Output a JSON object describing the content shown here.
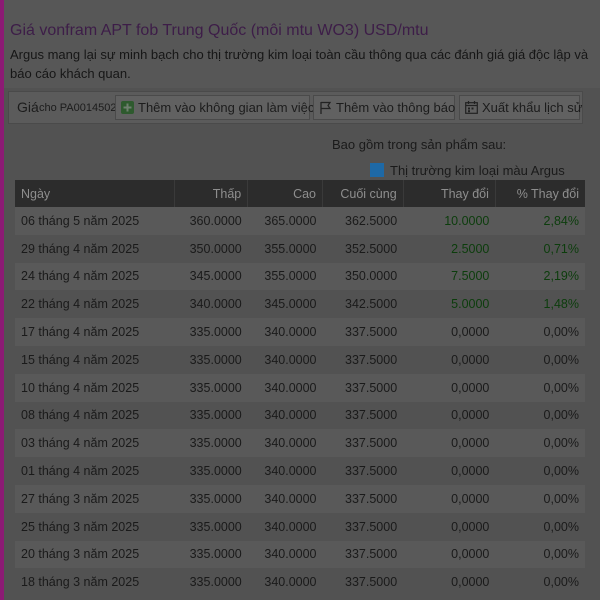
{
  "page": {
    "title": "Giá vonfram APT fob Trung Quốc (môi mtu WO3) USD/mtu",
    "description": "Argus mang lại sự minh bạch cho thị trường kim loại toàn cầu thông qua các đánh giá giá độc lập và báo cáo khách quan."
  },
  "toolbar": {
    "label": "Giá",
    "code": "cho PA0014502",
    "add_workspace": "Thêm vào không gian làm việc",
    "add_alert": "Thêm vào thông báo",
    "export_history": "Xuất khẩu lịch sử",
    "icons": [
      "plus-icon",
      "flag-icon",
      "calendar-icon"
    ]
  },
  "included": {
    "label": "Bao gồm trong sản phẩm sau:",
    "product": "Thị trường kim loại màu Argus",
    "product_color": "#1e69a6"
  },
  "table": {
    "headers": [
      "Ngày",
      "Thấp",
      "Cao",
      "Cuối cùng",
      "Thay đổi",
      "% Thay đổi"
    ],
    "rows": [
      [
        "06 tháng 5 năm 2025",
        "360.0000",
        "365.0000",
        "362.5000",
        "10.0000",
        "2,84%"
      ],
      [
        "29 tháng 4 năm 2025",
        "350.0000",
        "355.0000",
        "352.5000",
        "2.5000",
        "0,71%"
      ],
      [
        "24 tháng 4 năm 2025",
        "345.0000",
        "355.0000",
        "350.0000",
        "7.5000",
        "2,19%"
      ],
      [
        "22 tháng 4 năm 2025",
        "340.0000",
        "345.0000",
        "342.5000",
        "5.0000",
        "1,48%"
      ],
      [
        "17 tháng 4 năm 2025",
        "335.0000",
        "340.0000",
        "337.5000",
        "0,0000",
        "0,00%"
      ],
      [
        "15 tháng 4 năm 2025",
        "335.0000",
        "340.0000",
        "337.5000",
        "0,0000",
        "0,00%"
      ],
      [
        "10 tháng 4 năm 2025",
        "335.0000",
        "340.0000",
        "337.5000",
        "0,0000",
        "0,00%"
      ],
      [
        "08 tháng 4 năm 2025",
        "335.0000",
        "340.0000",
        "337.5000",
        "0,0000",
        "0,00%"
      ],
      [
        "03 tháng 4 năm 2025",
        "335.0000",
        "340.0000",
        "337.5000",
        "0,0000",
        "0,00%"
      ],
      [
        "01 tháng 4 năm 2025",
        "335.0000",
        "340.0000",
        "337.5000",
        "0,0000",
        "0,00%"
      ],
      [
        "27 tháng 3 năm 2025",
        "335.0000",
        "340.0000",
        "337.5000",
        "0,0000",
        "0,00%"
      ],
      [
        "25 tháng 3 năm 2025",
        "335.0000",
        "340.0000",
        "337.5000",
        "0,0000",
        "0,00%"
      ],
      [
        "20 tháng 3 năm 2025",
        "335.0000",
        "340.0000",
        "337.5000",
        "0,0000",
        "0,00%"
      ],
      [
        "18 tháng 3 năm 2025",
        "335.0000",
        "340.0000",
        "337.5000",
        "0,0000",
        "0,00%"
      ]
    ]
  }
}
